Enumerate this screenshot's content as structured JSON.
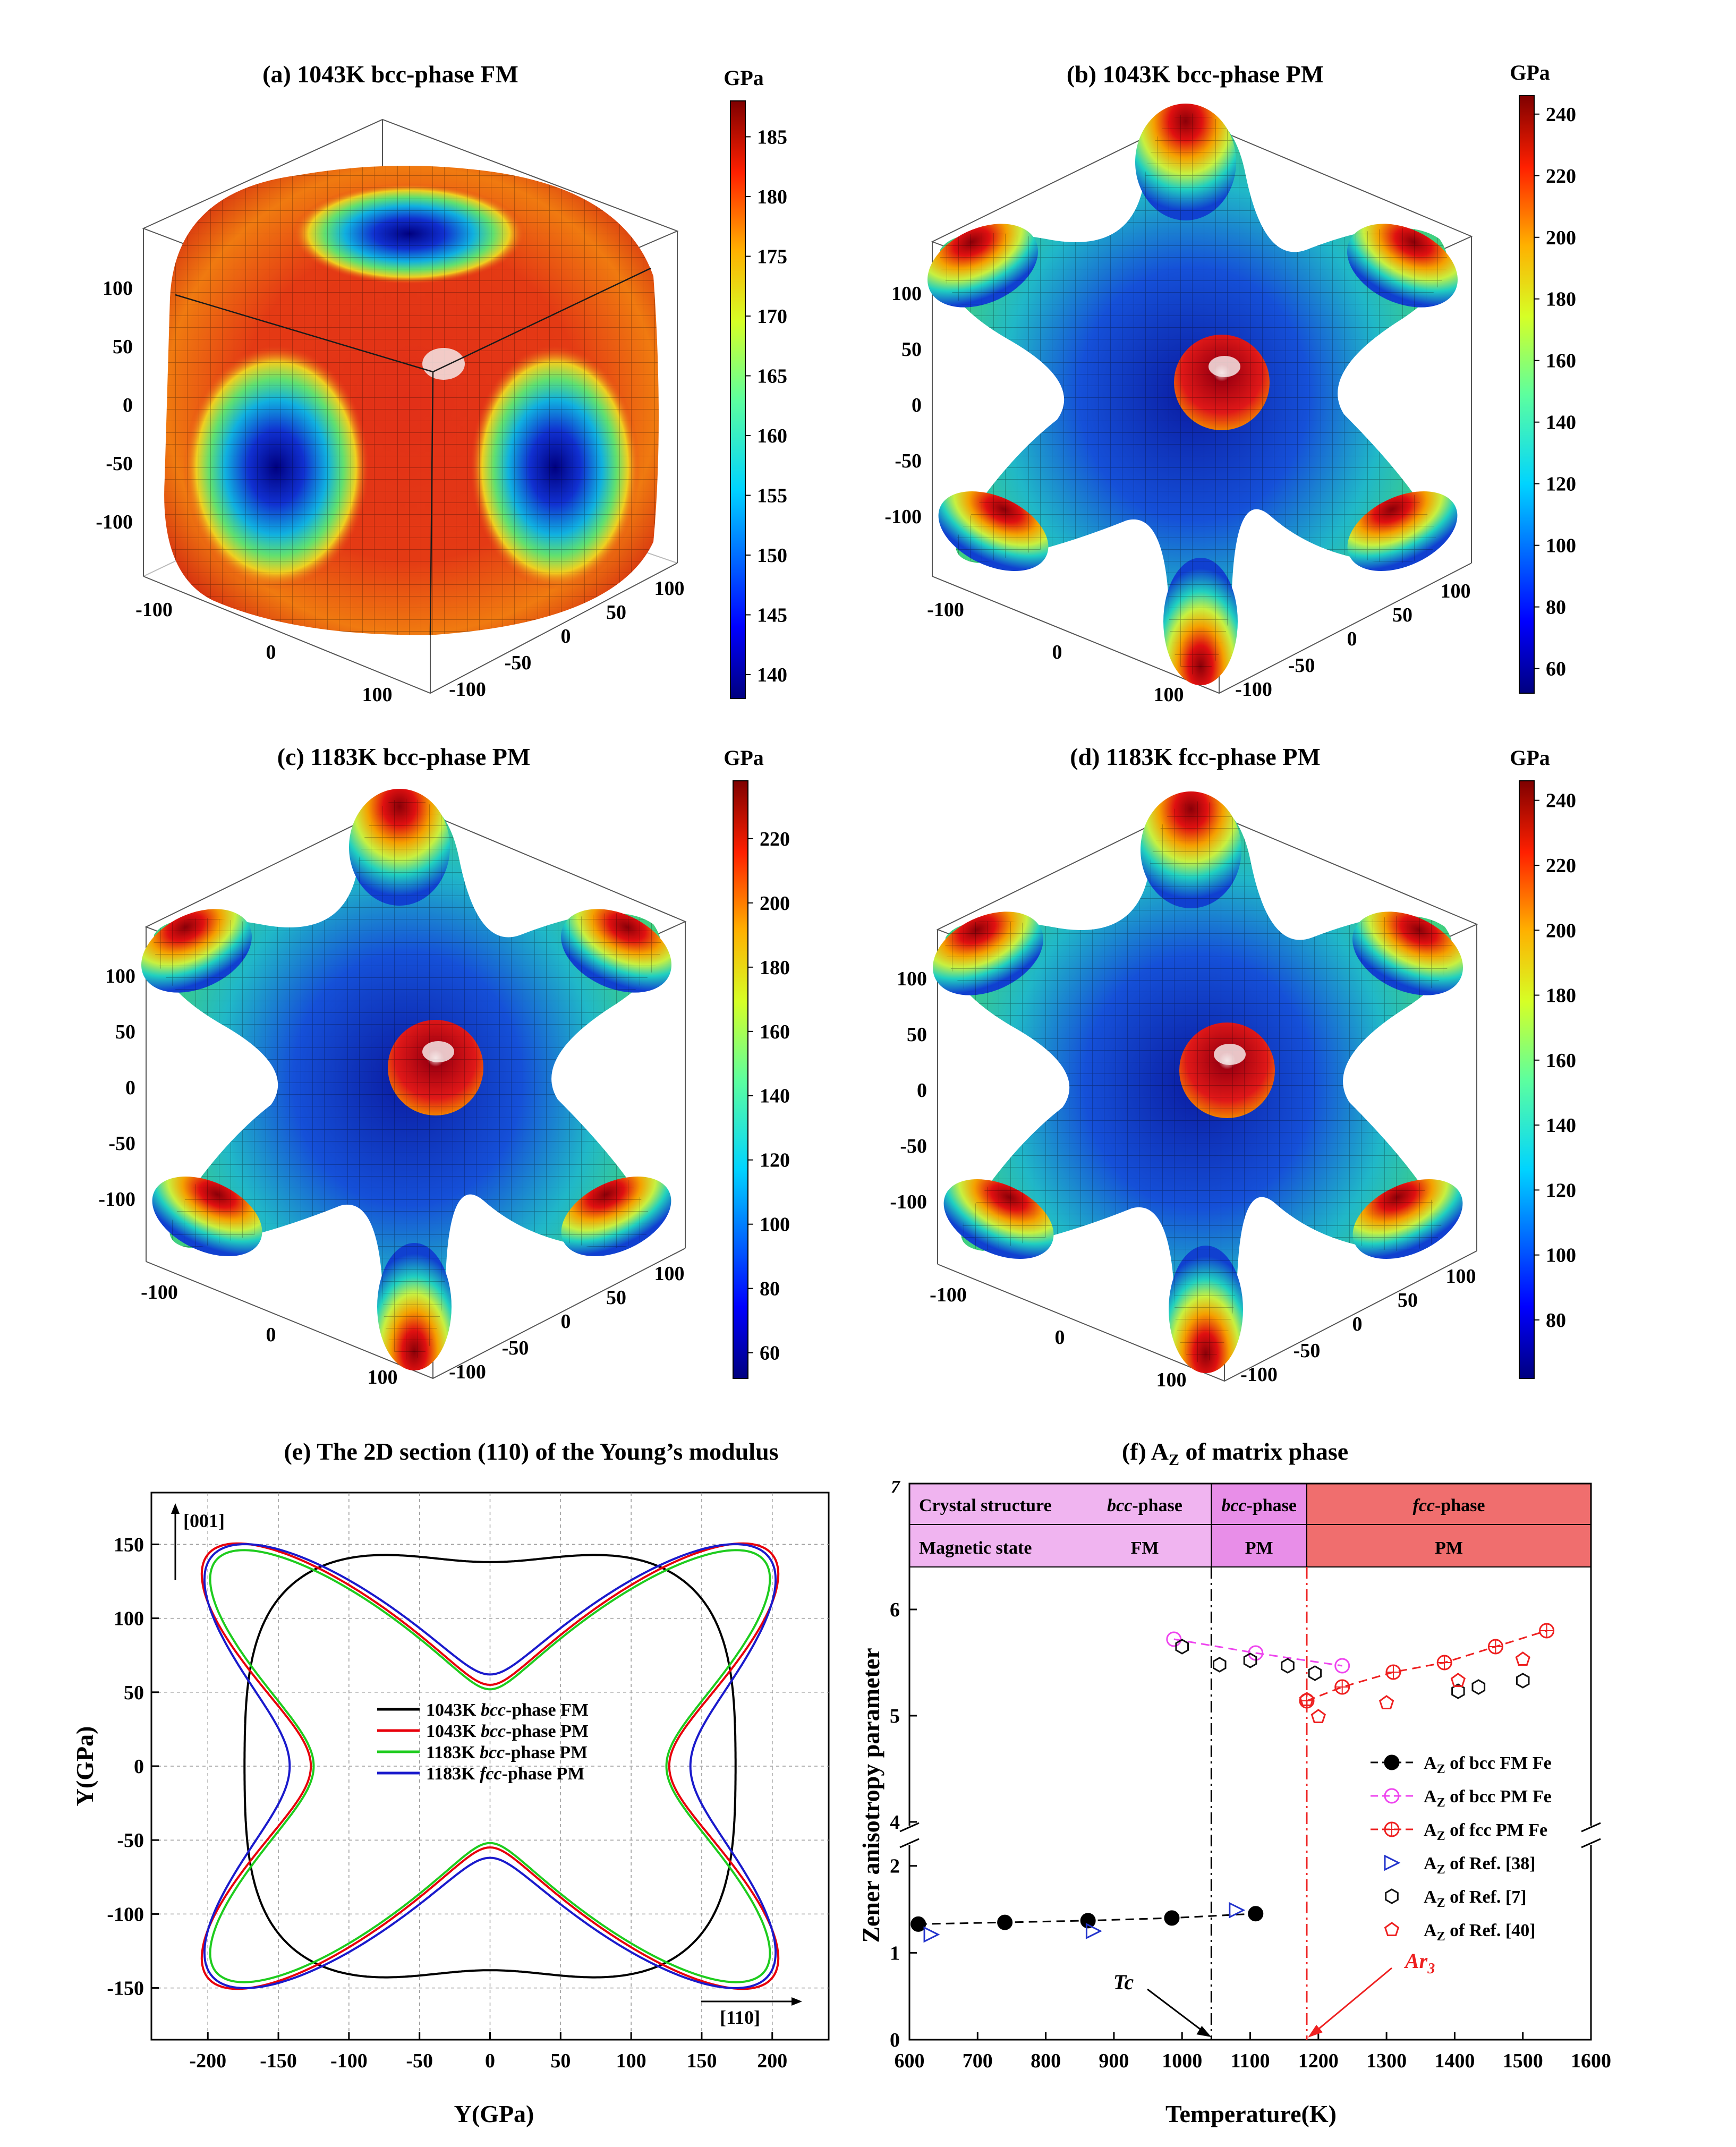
{
  "colors": {
    "fm": "#000000",
    "pm_bcc_1043": "#e8000b",
    "pm_bcc_1183": "#1ecc1e",
    "pm_fcc_1183": "#1a1acc",
    "magenta": "#ee44ee",
    "red": "#ee2020",
    "blue": "#2233cc",
    "band_bcc_fm": "#f0b4f0",
    "band_bcc_pm": "#e88ee8",
    "band_fcc": "#f06e6e"
  },
  "panels": {
    "a": {
      "title": "(a) 1043K bcc-phase FM",
      "unit": "GPa",
      "cb_ticks": [
        "185",
        "180",
        "175",
        "170",
        "165",
        "160",
        "155",
        "150",
        "145",
        "140"
      ],
      "cb_min": 138,
      "cb_max": 188,
      "cb_values": [
        185,
        180,
        175,
        170,
        165,
        160,
        155,
        150,
        145,
        140
      ]
    },
    "b": {
      "title": "(b) 1043K bcc-phase PM",
      "unit": "GPa",
      "cb_ticks": [
        "240",
        "220",
        "200",
        "180",
        "160",
        "140",
        "120",
        "100",
        "80",
        "60"
      ],
      "cb_min": 52,
      "cb_max": 246,
      "cb_values": [
        240,
        220,
        200,
        180,
        160,
        140,
        120,
        100,
        80,
        60
      ]
    },
    "c": {
      "title": "(c) 1183K bcc-phase PM",
      "unit": "GPa",
      "cb_ticks": [
        "220",
        "200",
        "180",
        "160",
        "140",
        "120",
        "100",
        "80",
        "60"
      ],
      "cb_min": 52,
      "cb_max": 238,
      "cb_values": [
        220,
        200,
        180,
        160,
        140,
        120,
        100,
        80,
        60
      ]
    },
    "d": {
      "title": "(d) 1183K fcc-phase PM",
      "unit": "GPa",
      "cb_ticks": [
        "240",
        "220",
        "200",
        "180",
        "160",
        "140",
        "120",
        "100",
        "80"
      ],
      "cb_min": 62,
      "cb_max": 246,
      "cb_values": [
        240,
        220,
        200,
        180,
        160,
        140,
        120,
        100,
        80
      ]
    },
    "axis3d": {
      "z_ticks": [
        "100",
        "50",
        "0",
        "-50",
        "-100"
      ],
      "x_ticks": [
        "-100",
        "0",
        "100"
      ],
      "y_ticks": [
        "100",
        "50",
        "0",
        "-50",
        "-100"
      ]
    }
  },
  "chart_data": [
    {
      "type": "line",
      "title": "(e) The 2D section (110) of the Young’s modulus",
      "xlabel": "Y(GPa)",
      "ylabel": "Y(GPa)",
      "xlim": [
        -240,
        240
      ],
      "ylim": [
        -185,
        185
      ],
      "xticks": [
        -200,
        -150,
        -100,
        -50,
        0,
        50,
        100,
        150,
        200
      ],
      "yticks": [
        -150,
        -100,
        -50,
        0,
        50,
        100,
        150
      ],
      "direction_labels": {
        "vertical": "[001]",
        "horizontal": "[110]"
      },
      "legend_position": "center-left",
      "series": [
        {
          "name": "1043K bcc-phase FM",
          "name_parts": [
            "1043K ",
            "bcc",
            "-phase FM"
          ],
          "Y001": 138,
          "Y110": 174,
          "Y111": 188
        },
        {
          "name": "1043K bcc-phase PM",
          "name_parts": [
            "1043K ",
            "bcc",
            "-phase PM"
          ],
          "Y001": 55,
          "Y110": 127,
          "Y111": 246
        },
        {
          "name": "1183K bcc-phase PM",
          "name_parts": [
            "1183K ",
            "bcc",
            "-phase PM"
          ],
          "Y001": 52,
          "Y110": 125,
          "Y111": 239
        },
        {
          "name": "1183K fcc-phase PM",
          "name_parts": [
            "1183K ",
            "fcc",
            "-phase PM"
          ],
          "Y001": 62,
          "Y110": 142,
          "Y111": 243
        }
      ]
    },
    {
      "type": "scatter",
      "title": "(f) A",
      "title_sub": "Z",
      "title_rest": " of matrix phase",
      "xlabel": "Temperature(K)",
      "ylabel": "Zener anisotropy parameter",
      "xlim": [
        600,
        1600
      ],
      "ylim_lower": [
        0,
        2.2
      ],
      "ylim_upper": [
        4,
        6.4
      ],
      "xticks": [
        600,
        700,
        800,
        900,
        1000,
        1100,
        1200,
        1300,
        1400,
        1500,
        1600
      ],
      "yticks_lower": [
        0,
        1,
        2
      ],
      "yticks_upper": [
        4,
        5,
        6
      ],
      "ytick_top": "7",
      "table": {
        "row1_label": "Crystal structure",
        "row2_label": "Magnetic state",
        "bcc_fm_struct": "bcc",
        "bcc_fm_struct_rest": "-phase",
        "bcc_fm_mag": "FM",
        "bcc_pm_struct": "bcc",
        "bcc_pm_struct_rest": "-phase",
        "bcc_pm_mag": "PM",
        "fcc_struct": "fcc",
        "fcc_struct_rest": "-phase",
        "fcc_mag": "PM",
        "x_split1": 1043,
        "x_split2": 1183
      },
      "vlines": [
        {
          "x": 1043,
          "label": "Tc",
          "color": "#000000"
        },
        {
          "x": 1183,
          "label": "Ar",
          "label_sub": "3",
          "color": "#ee2020"
        }
      ],
      "series": [
        {
          "name": "A",
          "sub": "Z",
          "rest": " of bcc FM Fe",
          "marker": "filled-circle",
          "line": true,
          "points": [
            [
              613,
              1.33
            ],
            [
              740,
              1.35
            ],
            [
              862,
              1.37
            ],
            [
              985,
              1.4
            ],
            [
              1108,
              1.45
            ]
          ]
        },
        {
          "name": "A",
          "sub": "Z",
          "rest": " of bcc PM Fe",
          "marker": "open-circle",
          "line": true,
          "points": [
            [
              988,
              5.72
            ],
            [
              1108,
              5.59
            ],
            [
              1235,
              5.47
            ]
          ]
        },
        {
          "name": "A",
          "sub": "Z",
          "rest": " of fcc PM Fe",
          "marker": "crossed-circle",
          "line": true,
          "points": [
            [
              1183,
              5.14
            ],
            [
              1235,
              5.27
            ],
            [
              1310,
              5.41
            ],
            [
              1385,
              5.5
            ],
            [
              1460,
              5.65
            ],
            [
              1535,
              5.8
            ]
          ]
        },
        {
          "name": "A",
          "sub": "Z",
          "rest": " of Ref. [38]",
          "marker": "triangle",
          "line": false,
          "points": [
            [
              632,
              1.21
            ],
            [
              870,
              1.25
            ],
            [
              1080,
              1.49
            ]
          ]
        },
        {
          "name": "A",
          "sub": "Z",
          "rest": " of Ref. [7]",
          "marker": "hexagon",
          "line": false,
          "points": [
            [
              1000,
              5.65
            ],
            [
              1055,
              5.48
            ],
            [
              1100,
              5.52
            ],
            [
              1155,
              5.47
            ],
            [
              1195,
              5.4
            ],
            [
              1405,
              5.23
            ],
            [
              1435,
              5.27
            ],
            [
              1500,
              5.33
            ]
          ]
        },
        {
          "name": "A",
          "sub": "Z",
          "rest": " of Ref. [40]",
          "marker": "pentagon",
          "line": false,
          "points": [
            [
              1183,
              5.15
            ],
            [
              1200,
              4.99
            ],
            [
              1300,
              5.12
            ],
            [
              1405,
              5.33
            ],
            [
              1500,
              5.53
            ]
          ]
        }
      ]
    }
  ]
}
